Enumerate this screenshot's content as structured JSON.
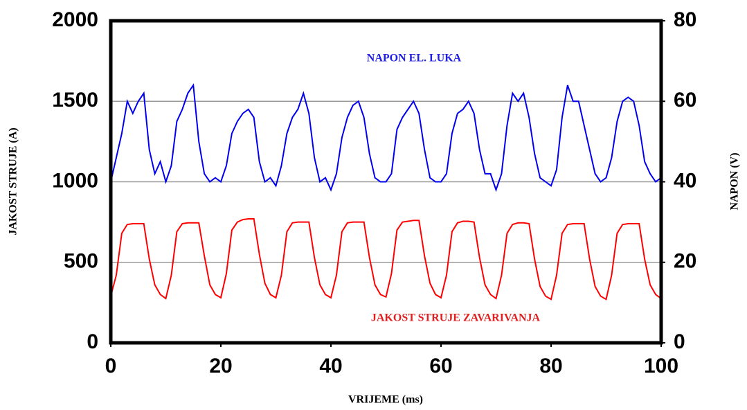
{
  "chart_data": {
    "type": "line",
    "x_label": "VRIJEME (ms)",
    "y_label": "JAKOST STRUJE (A)",
    "y2_label": "NAPON (V)",
    "annotations": [
      {
        "text": "NAPON EL. LUKA",
        "color": "#2020e0"
      },
      {
        "text": "JAKOST STRUJE ZAVARIVANJA",
        "color": "#e02020"
      }
    ],
    "x": [
      0,
      1,
      2,
      3,
      4,
      5,
      6,
      7,
      8,
      9,
      10,
      11,
      12,
      13,
      14,
      15,
      16,
      17,
      18,
      19,
      20,
      21,
      22,
      23,
      24,
      25,
      26,
      27,
      28,
      29,
      30,
      31,
      32,
      33,
      34,
      35,
      36,
      37,
      38,
      39,
      40,
      41,
      42,
      43,
      44,
      45,
      46,
      47,
      48,
      49,
      50,
      51,
      52,
      53,
      54,
      55,
      56,
      57,
      58,
      59,
      60,
      61,
      62,
      63,
      64,
      65,
      66,
      67,
      68,
      69,
      70,
      71,
      72,
      73,
      74,
      75,
      76,
      77,
      78,
      79,
      80,
      81,
      82,
      83,
      84,
      85,
      86,
      87,
      88,
      89,
      90,
      91,
      92,
      93,
      94,
      95,
      96,
      97,
      98,
      99,
      100
    ],
    "series": [
      {
        "name": "JAKOST STRUJE ZAVARIVANJA",
        "color": "#ff0000",
        "axis": "y",
        "values": [
          290,
          420,
          680,
          735,
          740,
          740,
          740,
          520,
          360,
          300,
          275,
          420,
          690,
          740,
          745,
          745,
          745,
          540,
          360,
          300,
          280,
          430,
          700,
          750,
          765,
          770,
          770,
          550,
          370,
          300,
          280,
          420,
          690,
          745,
          750,
          750,
          750,
          530,
          360,
          300,
          280,
          420,
          690,
          745,
          750,
          750,
          750,
          530,
          360,
          300,
          285,
          430,
          700,
          750,
          755,
          760,
          760,
          540,
          370,
          300,
          280,
          420,
          690,
          745,
          755,
          755,
          750,
          530,
          360,
          300,
          275,
          420,
          680,
          735,
          745,
          745,
          740,
          520,
          350,
          290,
          270,
          420,
          680,
          735,
          740,
          740,
          740,
          520,
          350,
          290,
          270,
          420,
          680,
          735,
          740,
          740,
          740,
          520,
          360,
          300,
          275
        ]
      },
      {
        "name": "NAPON EL. LUKA",
        "color": "#0000ee",
        "axis": "y2",
        "values": [
          40,
          46,
          52,
          60,
          57,
          60,
          62,
          48,
          42,
          45,
          40,
          44,
          55,
          58,
          62,
          64,
          50,
          42,
          40,
          41,
          40,
          44,
          52,
          55,
          57,
          58,
          56,
          45,
          40,
          41,
          39,
          44,
          52,
          56,
          58,
          62,
          57,
          46,
          40,
          41,
          38,
          42,
          51,
          56,
          59,
          60,
          56,
          47,
          41,
          40,
          40,
          42,
          53,
          56,
          58,
          60,
          57,
          48,
          41,
          40,
          40,
          42,
          52,
          57,
          58,
          60,
          57,
          48,
          42,
          42,
          38,
          42,
          54,
          62,
          60,
          62,
          56,
          47,
          41,
          40,
          39,
          43,
          56,
          64,
          60,
          60,
          54,
          48,
          42,
          40,
          41,
          46,
          55,
          60,
          61,
          60,
          54,
          45,
          42,
          40,
          41
        ]
      }
    ],
    "xlim": [
      0,
      100
    ],
    "xticks": [
      0,
      20,
      40,
      60,
      80,
      100
    ],
    "ylim": [
      0,
      2000
    ],
    "yticks": [
      0,
      500,
      1000,
      1500,
      2000
    ],
    "y2lim": [
      0,
      80
    ],
    "y2ticks": [
      0,
      20,
      40,
      60,
      80
    ],
    "grid": true
  }
}
